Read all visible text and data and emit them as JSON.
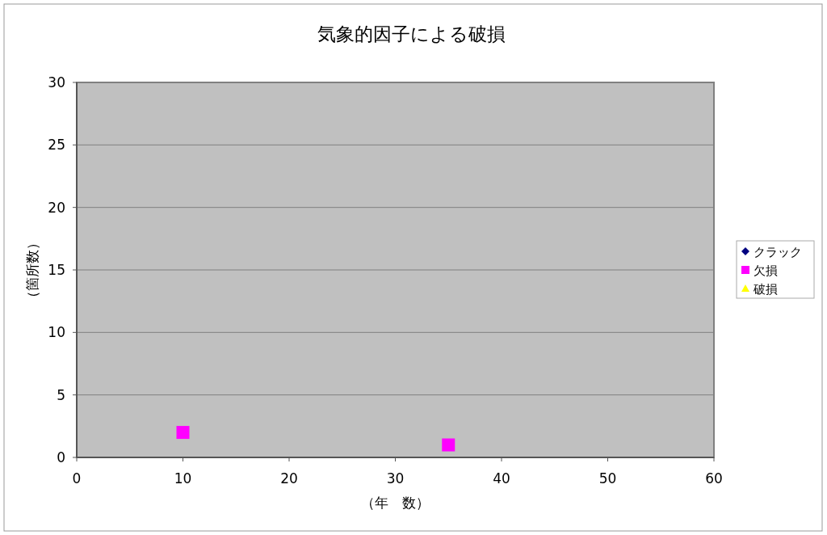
{
  "chart_data": {
    "type": "scatter",
    "title": "気象的因子による破損",
    "xlabel": "（年　数）",
    "ylabel": "（箇所数）",
    "xlim": [
      0,
      60
    ],
    "xticks": [
      0,
      10,
      20,
      30,
      40,
      50,
      60
    ],
    "ylim": [
      0,
      30
    ],
    "yticks": [
      0,
      5,
      10,
      15,
      20,
      25,
      30
    ],
    "grid": "y",
    "legend": "right",
    "series": [
      {
        "name": "クラック",
        "color": "#000080",
        "marker": "diamond"
      },
      {
        "name": "欠損",
        "color": "#ff00ff",
        "marker": "square",
        "x": [
          10,
          35
        ],
        "values": [
          2,
          1
        ]
      },
      {
        "name": "破損",
        "color": "#ffff00",
        "marker": "triangle"
      }
    ]
  }
}
